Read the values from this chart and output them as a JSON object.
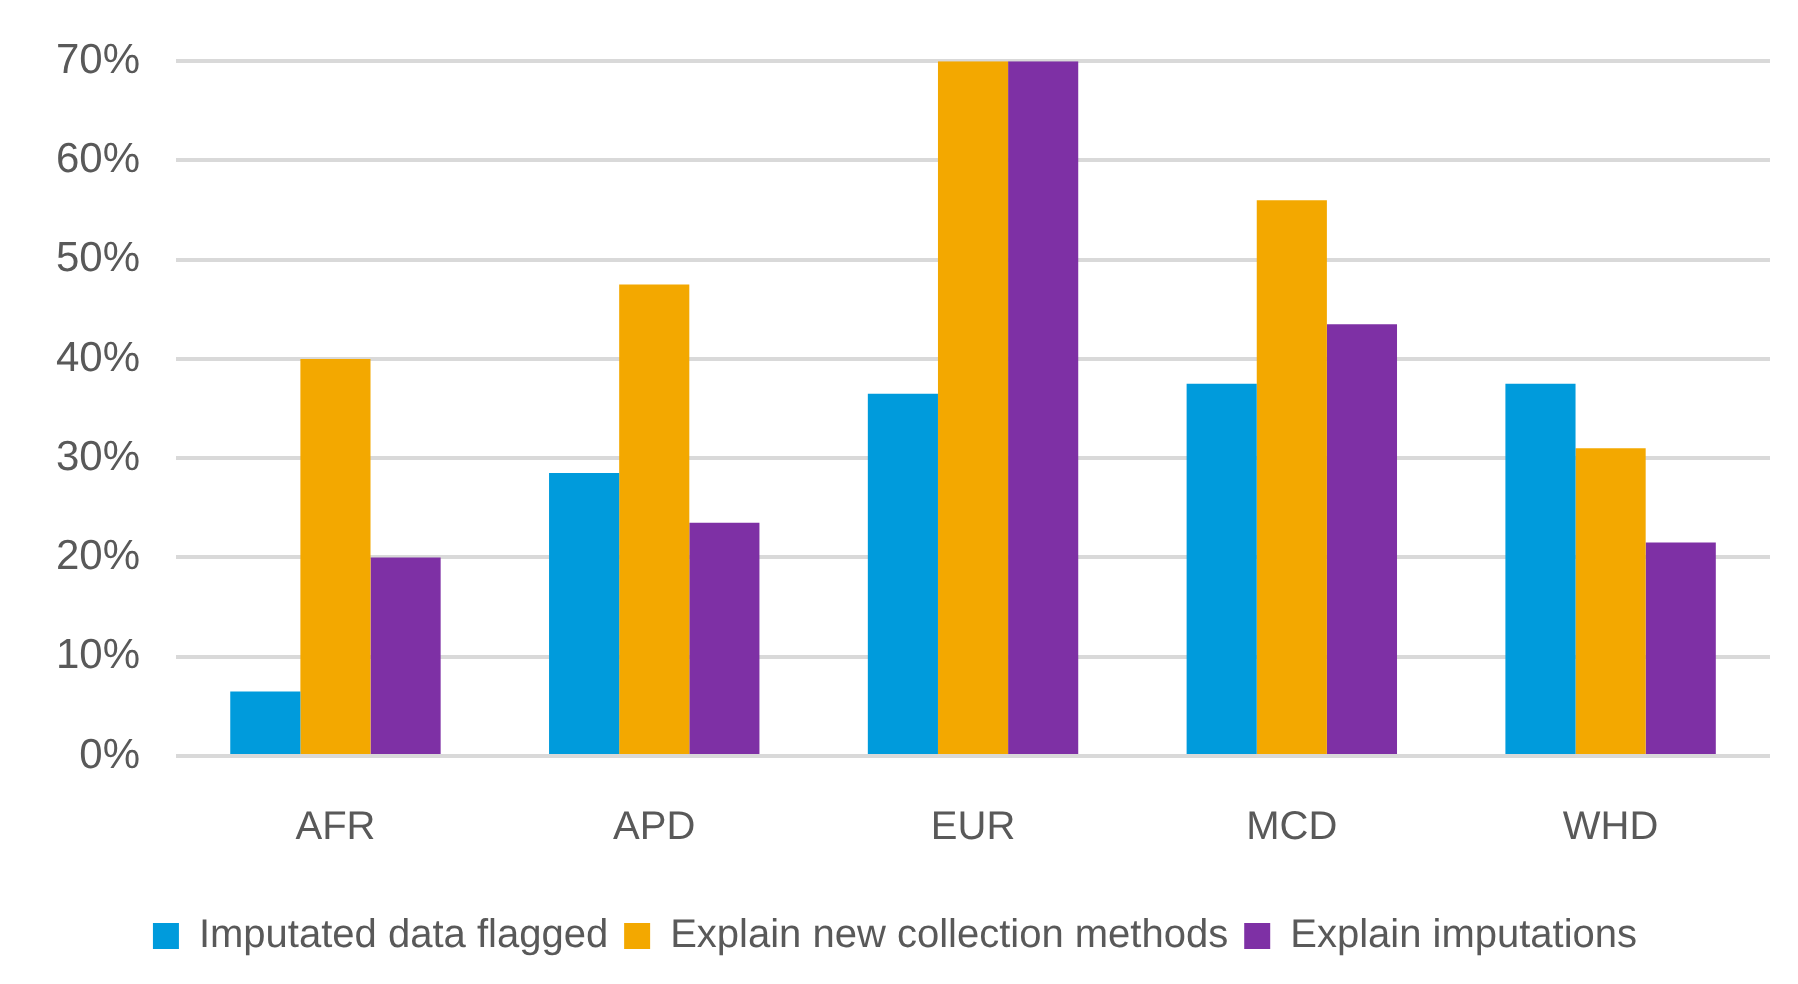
{
  "chart_data": {
    "type": "bar",
    "categories": [
      "AFR",
      "APD",
      "EUR",
      "MCD",
      "WHD"
    ],
    "series": [
      {
        "name": "Imputated data flagged",
        "color": "#009bdc",
        "values": [
          6.5,
          28.5,
          36.5,
          37.5,
          37.5
        ]
      },
      {
        "name": "Explain new collection methods",
        "color": "#f3a800",
        "values": [
          40,
          47.5,
          70,
          56,
          31
        ]
      },
      {
        "name": "Explain imputations",
        "color": "#7e30a5",
        "values": [
          20,
          23.5,
          70,
          43.5,
          21.5
        ]
      }
    ],
    "ylim": [
      0,
      70
    ],
    "yticks": [
      {
        "value": 0,
        "label": "0%"
      },
      {
        "value": 10,
        "label": "10%"
      },
      {
        "value": 20,
        "label": "20%"
      },
      {
        "value": 30,
        "label": "30%"
      },
      {
        "value": 40,
        "label": "40%"
      },
      {
        "value": 50,
        "label": "50%"
      },
      {
        "value": 60,
        "label": "60%"
      },
      {
        "value": 70,
        "label": "70%"
      }
    ],
    "grid": "y",
    "legend": "bottom"
  }
}
